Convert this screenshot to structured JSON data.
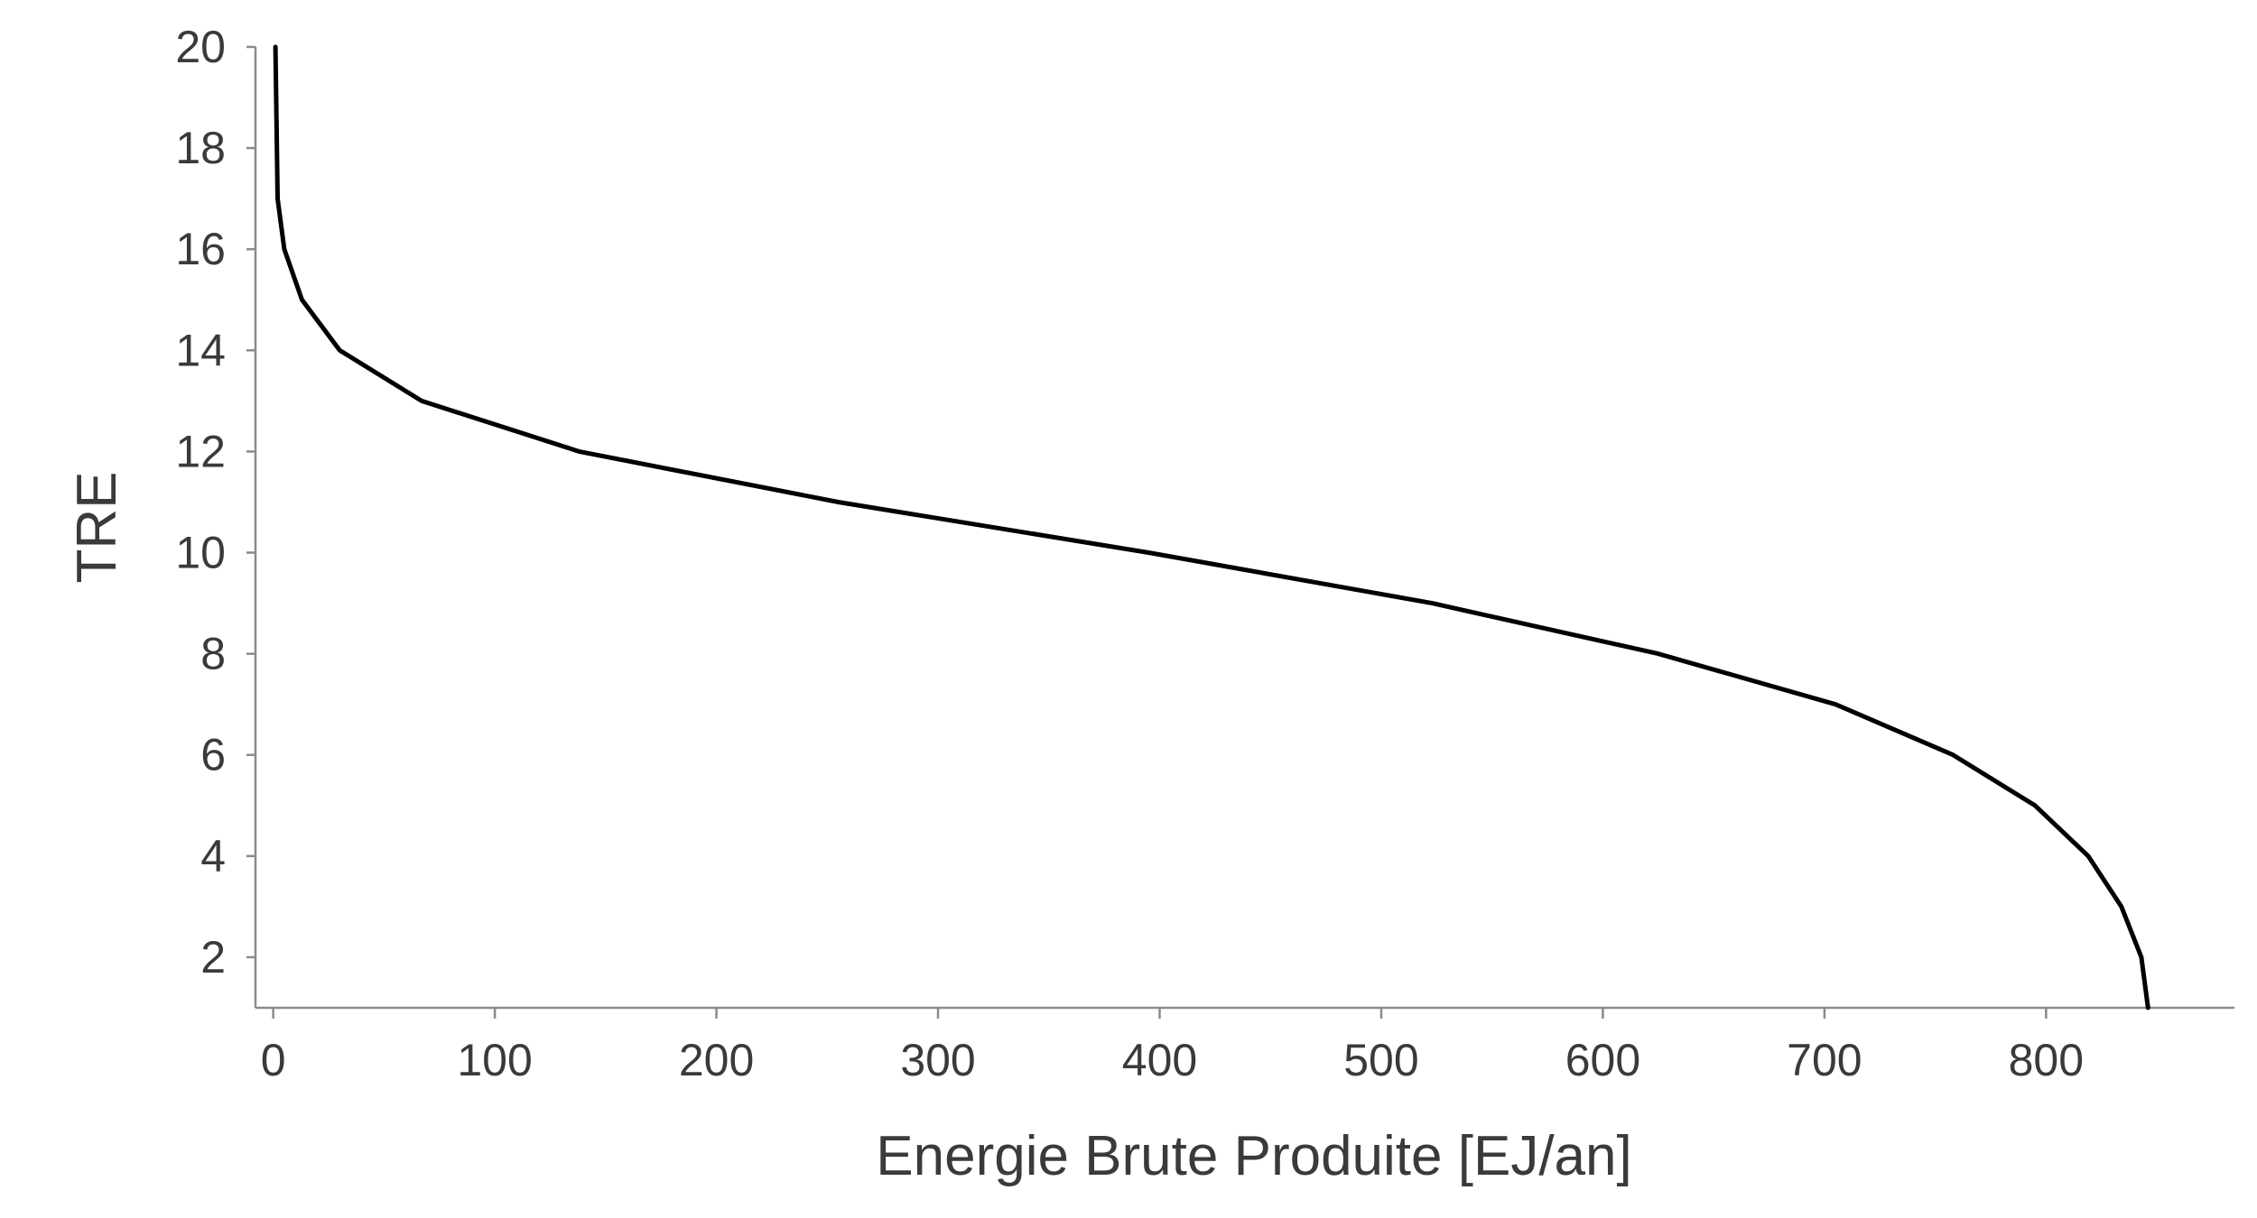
{
  "chart_data": {
    "type": "line",
    "title": "",
    "xlabel": "Energie Brute Produite [EJ/an]",
    "ylabel": "TRE",
    "xlim": [
      -8,
      885
    ],
    "ylim": [
      1,
      20
    ],
    "x_ticks": [
      0,
      100,
      200,
      300,
      400,
      500,
      600,
      700,
      800
    ],
    "x_tick_labels": [
      "0",
      "100",
      "200",
      "300",
      "400",
      "500",
      "600",
      "700",
      "800"
    ],
    "y_ticks": [
      2,
      4,
      6,
      8,
      10,
      12,
      14,
      16,
      18,
      20
    ],
    "y_tick_labels": [
      "2",
      "4",
      "6",
      "8",
      "10",
      "12",
      "14",
      "16",
      "18",
      "20"
    ],
    "grid": false,
    "legend": "none",
    "line_color": "#000000",
    "series": [
      {
        "x": [
          1,
          2,
          5,
          13,
          30,
          67,
          138,
          255,
          395,
          523,
          625,
          705,
          758,
          795,
          819,
          834,
          843,
          846
        ],
        "y": [
          20,
          17,
          16,
          15,
          14,
          13,
          12,
          11,
          10,
          9,
          8,
          7,
          6,
          5,
          4,
          3,
          2,
          1
        ]
      }
    ]
  }
}
